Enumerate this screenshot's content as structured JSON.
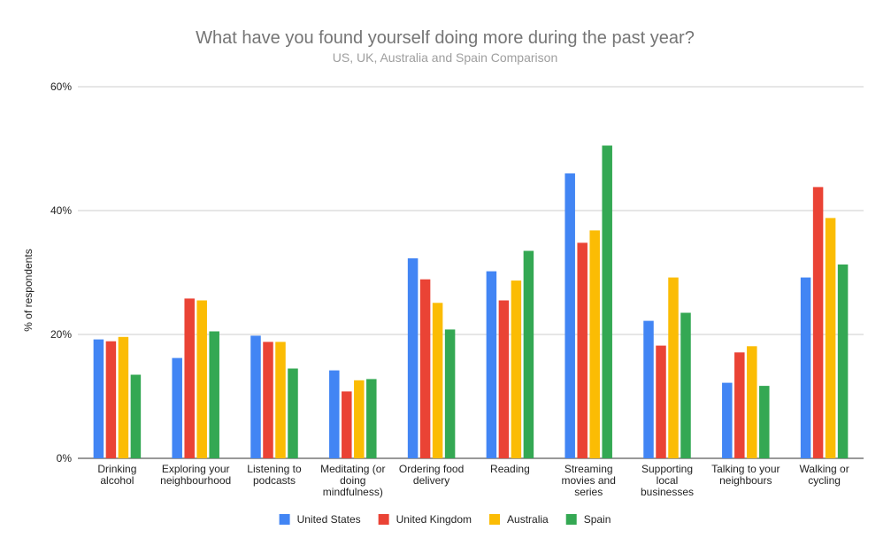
{
  "chart_data": {
    "type": "bar",
    "title": "What have you found yourself doing more during the past year?",
    "subtitle": "US, UK, Australia and Spain Comparison",
    "xlabel": "",
    "ylabel": "% of respondents",
    "ylim": [
      0,
      60
    ],
    "yticks": [
      0,
      20,
      40,
      60
    ],
    "ytick_labels": [
      "0%",
      "20%",
      "40%",
      "60%"
    ],
    "grid": true,
    "legend_position": "bottom",
    "categories": [
      [
        "Drinking",
        "alcohol"
      ],
      [
        "Exploring your",
        "neighbourhood"
      ],
      [
        "Listening to",
        "podcasts"
      ],
      [
        "Meditating (or",
        "doing",
        "mindfulness)"
      ],
      [
        "Ordering food",
        "delivery"
      ],
      [
        "Reading"
      ],
      [
        "Streaming",
        "movies and",
        "series"
      ],
      [
        "Supporting",
        "local",
        "businesses"
      ],
      [
        "Talking to your",
        "neighbours"
      ],
      [
        "Walking or",
        "cycling"
      ]
    ],
    "series": [
      {
        "name": "United States",
        "color": "#4285f4",
        "values": [
          19.2,
          16.2,
          19.8,
          14.2,
          32.3,
          30.2,
          46,
          22.2,
          12.2,
          29.2
        ]
      },
      {
        "name": "United Kingdom",
        "color": "#ea4335",
        "values": [
          18.9,
          25.8,
          18.8,
          10.8,
          28.9,
          25.5,
          34.8,
          18.2,
          17.1,
          43.8
        ]
      },
      {
        "name": "Australia",
        "color": "#fbbc04",
        "values": [
          19.6,
          25.5,
          18.8,
          12.6,
          25.1,
          28.7,
          36.8,
          29.2,
          18.1,
          38.8
        ]
      },
      {
        "name": "Spain",
        "color": "#34a853",
        "values": [
          13.5,
          20.5,
          14.5,
          12.8,
          20.8,
          33.5,
          50.5,
          23.5,
          11.7,
          31.3
        ]
      }
    ]
  }
}
